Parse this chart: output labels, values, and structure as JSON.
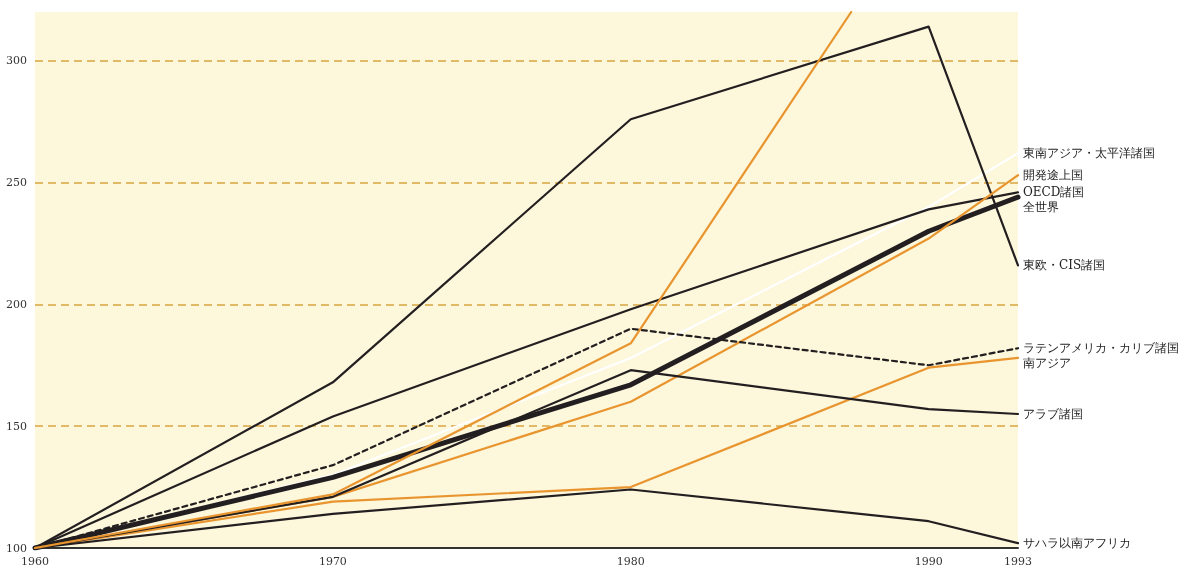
{
  "chart_data": {
    "type": "line",
    "x": [
      1960,
      1970,
      1980,
      1990,
      1993
    ],
    "xlim": [
      1960,
      1993
    ],
    "xticks": [
      1960,
      1970,
      1980,
      1990,
      1993
    ],
    "ylim": [
      100,
      320
    ],
    "yticks": [
      100,
      150,
      200,
      250,
      300
    ],
    "grid": "y",
    "legend": false,
    "marker": "none",
    "line_style": "solid",
    "series": [
      {
        "name": "東欧・CIS諸国",
        "color": "#231f20",
        "values": [
          100,
          168,
          276,
          314,
          216
        ]
      },
      {
        "name": "OECD諸国",
        "color": "#231f20",
        "values": [
          100,
          154,
          198,
          239,
          246
        ]
      },
      {
        "name": "全世界",
        "color": "#231f20",
        "values": [
          100,
          129,
          167,
          230,
          244
        ]
      },
      {
        "name": "東南アジア・太平洋諸国",
        "color": "#ffffff",
        "values": [
          100,
          130,
          178,
          240,
          262
        ]
      },
      {
        "name": "開発途上国",
        "color": "#e8952f",
        "values": [
          100,
          121,
          160,
          227,
          253
        ]
      },
      {
        "name": "ラテンアメリカ・カリブ諸国",
        "color": "#231f20",
        "line_style": "dashed",
        "values": [
          100,
          134,
          190,
          175,
          182
        ]
      },
      {
        "name": "南アジア",
        "color": "#e8952f",
        "values": [
          100,
          119,
          125,
          174,
          178
        ]
      },
      {
        "name": "アラブ諸国",
        "color": "#231f20",
        "values": [
          100,
          121,
          173,
          157,
          155
        ]
      },
      {
        "name": "サハラ以南アフリカ",
        "color": "#231f20",
        "values": [
          100,
          114,
          124,
          111,
          102
        ]
      },
      {
        "color": "#e8952f",
        "x": [
          1960,
          1970,
          1980,
          1987.4
        ],
        "values": [
          100,
          122,
          184,
          320
        ]
      }
    ]
  }
}
